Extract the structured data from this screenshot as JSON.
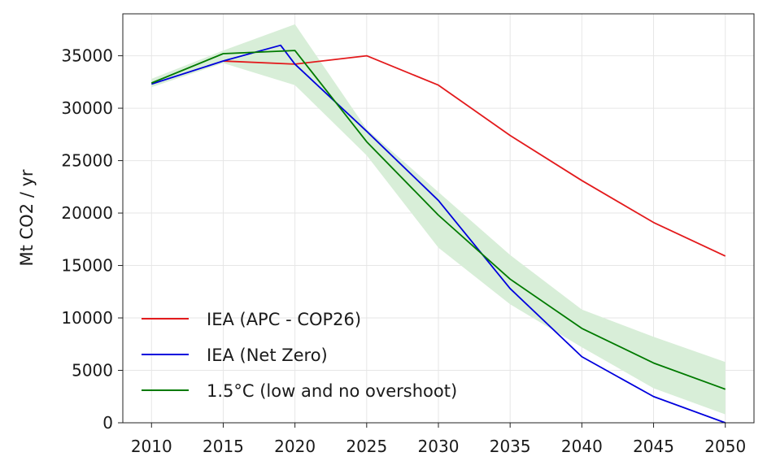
{
  "chart_data": {
    "type": "line",
    "title": "",
    "xlabel": "",
    "ylabel": "Mt CO2 / yr",
    "xlim": [
      2008,
      2052
    ],
    "ylim": [
      0,
      39000
    ],
    "grid": true,
    "legend_position": "bottom-left",
    "xticks": [
      2010,
      2015,
      2020,
      2025,
      2030,
      2035,
      2040,
      2045,
      2050
    ],
    "yticks": [
      0,
      5000,
      10000,
      15000,
      20000,
      25000,
      30000,
      35000
    ],
    "series": [
      {
        "name": "IEA (APC - COP26)",
        "color": "#e31a1c",
        "points": [
          [
            2015,
            34500
          ],
          [
            2020,
            34200
          ],
          [
            2025,
            35000
          ],
          [
            2030,
            32200
          ],
          [
            2035,
            27400
          ],
          [
            2040,
            23100
          ],
          [
            2045,
            19100
          ],
          [
            2050,
            15900
          ]
        ]
      },
      {
        "name": "IEA (Net Zero)",
        "color": "#0000dd",
        "points": [
          [
            2010,
            32300
          ],
          [
            2015,
            34500
          ],
          [
            2019,
            36000
          ],
          [
            2020,
            34200
          ],
          [
            2025,
            27800
          ],
          [
            2030,
            21200
          ],
          [
            2035,
            12800
          ],
          [
            2040,
            6300
          ],
          [
            2045,
            2500
          ],
          [
            2050,
            0
          ]
        ]
      },
      {
        "name": "1.5°C (low and no overshoot)",
        "color": "#007a00",
        "points": [
          [
            2010,
            32400
          ],
          [
            2015,
            35200
          ],
          [
            2020,
            35500
          ],
          [
            2025,
            26800
          ],
          [
            2030,
            19800
          ],
          [
            2035,
            13700
          ],
          [
            2040,
            9000
          ],
          [
            2045,
            5700
          ],
          [
            2050,
            3200
          ]
        ],
        "band": {
          "color": "#d8eed8",
          "upper": [
            [
              2010,
              32800
            ],
            [
              2015,
              35500
            ],
            [
              2020,
              38000
            ],
            [
              2025,
              28000
            ],
            [
              2030,
              22000
            ],
            [
              2035,
              16000
            ],
            [
              2040,
              10800
            ],
            [
              2045,
              8200
            ],
            [
              2050,
              5800
            ]
          ],
          "lower": [
            [
              2010,
              32000
            ],
            [
              2015,
              34300
            ],
            [
              2020,
              32200
            ],
            [
              2025,
              25500
            ],
            [
              2030,
              16700
            ],
            [
              2035,
              11300
            ],
            [
              2040,
              7200
            ],
            [
              2045,
              3300
            ],
            [
              2050,
              800
            ]
          ]
        }
      }
    ]
  }
}
